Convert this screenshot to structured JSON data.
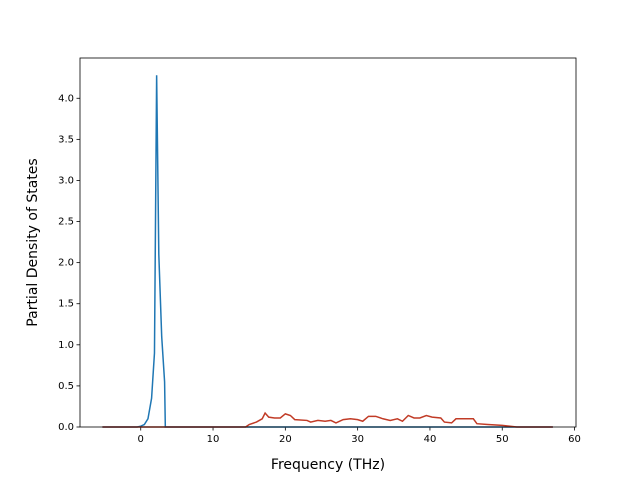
{
  "chart_data": {
    "type": "line",
    "xlabel": "Frequency (THz)",
    "ylabel": "Partial Density of States",
    "xlim": [
      -8.4,
      60.2
    ],
    "ylim": [
      0,
      4.49
    ],
    "xticks": [
      0,
      10,
      20,
      30,
      40,
      50,
      60
    ],
    "yticks": [
      {
        "value": 0,
        "label": "0.0"
      },
      {
        "value": 0.5,
        "label": "0.5"
      },
      {
        "value": 1,
        "label": "1.0"
      },
      {
        "value": 1.5,
        "label": "1.5"
      },
      {
        "value": 2,
        "label": "2.0"
      },
      {
        "value": 2.5,
        "label": "2.5"
      },
      {
        "value": 3,
        "label": "3.0"
      },
      {
        "value": 3.5,
        "label": "3.5"
      },
      {
        "value": 4,
        "label": "4.0"
      }
    ],
    "series": [
      {
        "color": "#1f77b4",
        "x": [
          -5.3,
          -0.5,
          0,
          0.5,
          1,
          1.5,
          1.9,
          2.2,
          2.5,
          2.9,
          3.3,
          3.4,
          57
        ],
        "values": [
          0,
          0,
          0.01,
          0.03,
          0.1,
          0.35,
          0.9,
          4.28,
          2.1,
          1.1,
          0.55,
          0,
          0
        ]
      },
      {
        "color": "#c13b26",
        "x": [
          -5.3,
          14.5,
          15,
          16,
          16.8,
          17.2,
          17.7,
          18.5,
          19.3,
          20,
          20.7,
          21.3,
          23,
          23.5,
          24.5,
          25.5,
          26.3,
          27,
          28,
          29,
          30,
          30.7,
          31.5,
          32.5,
          33.5,
          34.5,
          35.5,
          36.2,
          37,
          37.8,
          38.6,
          39.5,
          40.3,
          41.5,
          42,
          43,
          43.6,
          45,
          46,
          46.5,
          48,
          50,
          52,
          57
        ],
        "values": [
          0,
          0,
          0.03,
          0.06,
          0.1,
          0.17,
          0.12,
          0.11,
          0.11,
          0.16,
          0.14,
          0.09,
          0.08,
          0.06,
          0.08,
          0.07,
          0.08,
          0.05,
          0.09,
          0.1,
          0.09,
          0.07,
          0.13,
          0.13,
          0.1,
          0.08,
          0.1,
          0.07,
          0.14,
          0.11,
          0.11,
          0.14,
          0.12,
          0.11,
          0.06,
          0.05,
          0.1,
          0.1,
          0.1,
          0.04,
          0.03,
          0.02,
          0,
          0
        ]
      }
    ]
  }
}
